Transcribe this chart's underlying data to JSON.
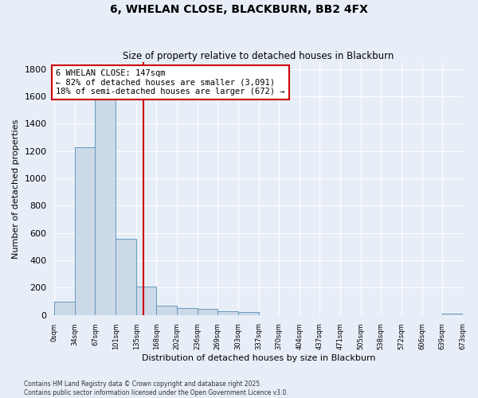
{
  "title": "6, WHELAN CLOSE, BLACKBURN, BB2 4FX",
  "subtitle": "Size of property relative to detached houses in Blackburn",
  "xlabel": "Distribution of detached houses by size in Blackburn",
  "ylabel": "Number of detached properties",
  "bar_edges": [
    0,
    34,
    67,
    101,
    135,
    168,
    202,
    236,
    269,
    303,
    337,
    370,
    404,
    437,
    471,
    505,
    538,
    572,
    606,
    639,
    673
  ],
  "bar_heights": [
    95,
    1230,
    1620,
    560,
    210,
    70,
    50,
    45,
    30,
    20,
    0,
    0,
    0,
    0,
    0,
    0,
    0,
    0,
    0,
    10
  ],
  "bar_color": "#ccd9e8",
  "bar_edgecolor": "#6699bb",
  "property_size": 147,
  "vline_color": "#cc0000",
  "annotation_text": "6 WHELAN CLOSE: 147sqm\n← 82% of detached houses are smaller (3,091)\n18% of semi-detached houses are larger (672) →",
  "annotation_box_edgecolor": "#cc0000",
  "annotation_box_facecolor": "#ffffff",
  "ylim": [
    0,
    1850
  ],
  "yticks": [
    0,
    200,
    400,
    600,
    800,
    1000,
    1200,
    1400,
    1600,
    1800
  ],
  "footer_text": "Contains HM Land Registry data © Crown copyright and database right 2025.\nContains public sector information licensed under the Open Government Licence v3.0.",
  "background_color": "#e8eef8",
  "grid_color": "#ffffff",
  "tick_labels": [
    "0sqm",
    "34sqm",
    "67sqm",
    "101sqm",
    "135sqm",
    "168sqm",
    "202sqm",
    "236sqm",
    "269sqm",
    "303sqm",
    "337sqm",
    "370sqm",
    "404sqm",
    "437sqm",
    "471sqm",
    "505sqm",
    "538sqm",
    "572sqm",
    "606sqm",
    "639sqm",
    "673sqm"
  ]
}
